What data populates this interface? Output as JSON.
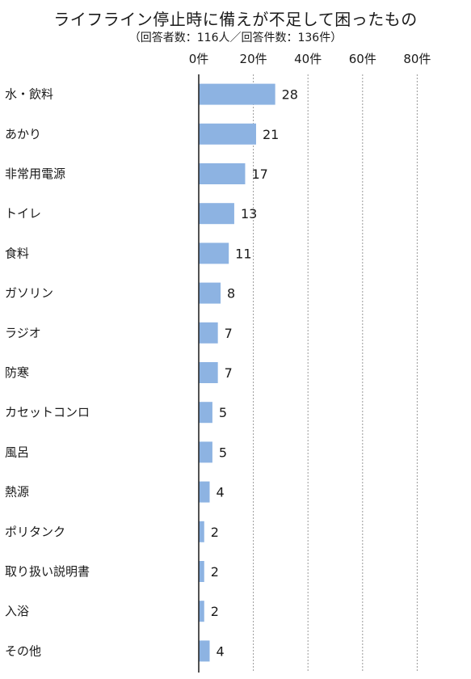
{
  "chart_data": {
    "type": "bar",
    "orientation": "horizontal",
    "title": "ライフライン停止時に備えが不足して困ったもの",
    "subtitle": "（回答者数：116人／回答件数：136件）",
    "categories": [
      "水・飲料",
      "あかり",
      "非常用電源",
      "トイレ",
      "食料",
      "ガソリン",
      "ラジオ",
      "防寒",
      "カセットコンロ",
      "風呂",
      "熱源",
      "ポリタンク",
      "取り扱い説明書",
      "入浴",
      "その他"
    ],
    "values": [
      28,
      21,
      17,
      13,
      11,
      8,
      7,
      7,
      5,
      5,
      4,
      2,
      2,
      2,
      4
    ],
    "x_ticks": [
      "0件",
      "20件",
      "40件",
      "60件",
      "80件"
    ],
    "xlim": [
      0,
      80
    ],
    "grid": true,
    "bar_color": "#8DB3E2"
  }
}
